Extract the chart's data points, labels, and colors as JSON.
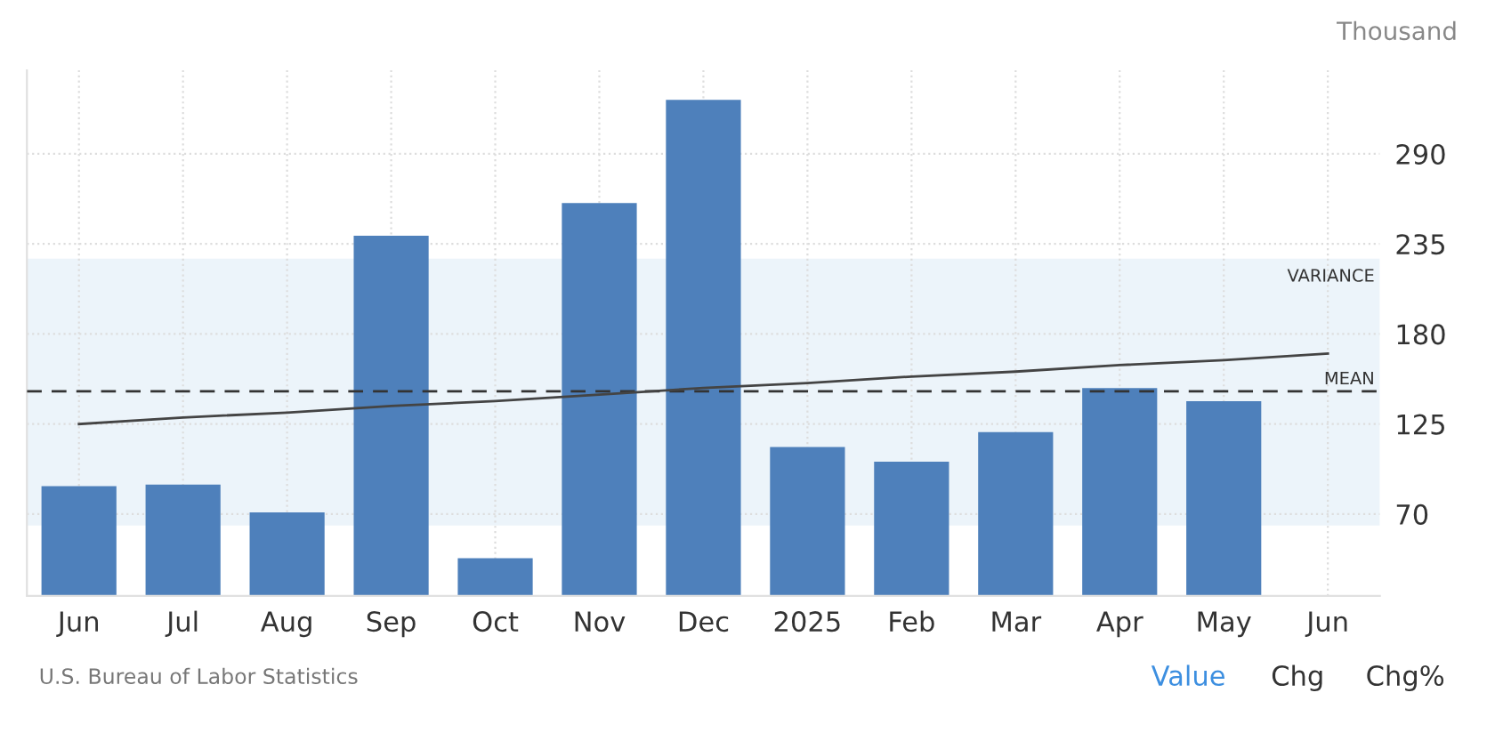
{
  "chart_data": {
    "type": "bar",
    "ylabel": "Thousand",
    "categories": [
      "Jun",
      "Jul",
      "Aug",
      "Sep",
      "Oct",
      "Nov",
      "Dec",
      "2025",
      "Feb",
      "Mar",
      "Apr",
      "May",
      "Jun"
    ],
    "series": [
      {
        "color": "#4e80bb",
        "values": [
          87,
          88,
          71,
          240,
          43,
          260,
          323,
          111,
          102,
          120,
          147,
          139,
          null
        ]
      },
      {
        "type": "line",
        "color": "#444444",
        "values": [
          125,
          129,
          132,
          136,
          139,
          143,
          147,
          150,
          154,
          157,
          161,
          164,
          168
        ]
      }
    ],
    "ylim": [
      20,
      341
    ],
    "yticks": [
      70,
      125,
      180,
      235,
      290
    ],
    "grid": true,
    "legend": false,
    "ref_lines": [
      {
        "axis": "y",
        "value": 145,
        "label": "MEAN",
        "color": "#333333",
        "line_style": "dashed"
      }
    ],
    "bands": [
      {
        "axis": "y",
        "from": 63,
        "to": 226,
        "label": "VARIANCE",
        "color": "#ecf4fa"
      }
    ],
    "annotations": [
      "U.S. Bureau of Labor Statistics",
      "Value",
      "Chg",
      "Chg%"
    ]
  }
}
